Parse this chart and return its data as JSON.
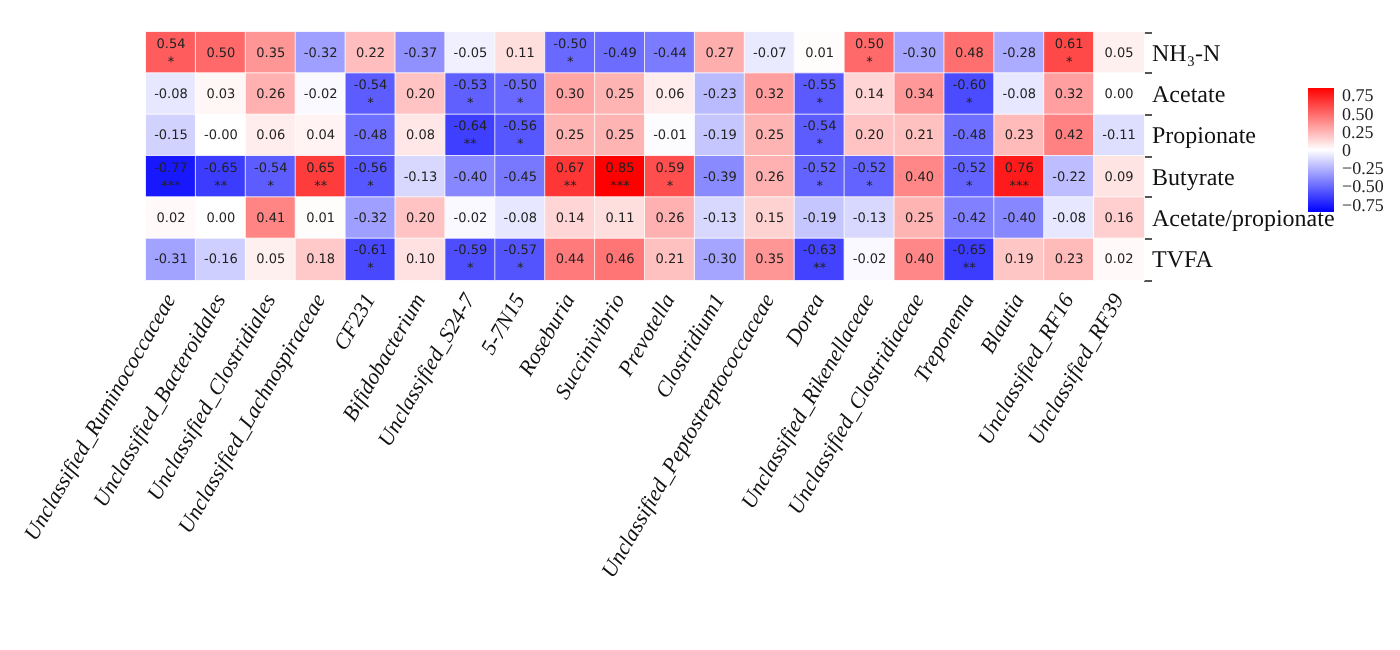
{
  "chart_data": {
    "type": "heatmap",
    "categories": [
      "Unclassified_Ruminococcaceae",
      "Unclassified_Bacteroidales",
      "Unclassified_Clostridiales",
      "Unclassified_Lachnospiraceae",
      "CF231",
      "Bifidobacterium",
      "Unclassified_S24-7",
      "5-7N15",
      "Roseburia",
      "Succinivibrio",
      "Prevotella",
      "Clostridium1",
      "Unclassified_Peptostreptococcaceae",
      "Dorea",
      "Unclassified_Rikenellaceae",
      "Unclassified_Clostridiaceae",
      "Treponema",
      "Blautia",
      "Unclassified_RF16",
      "Unclassified_RF39"
    ],
    "y_categories": [
      "NH₃-N",
      "Acetate",
      "Propionate",
      "Butyrate",
      "Acetate/propionate",
      "TVFA"
    ],
    "cells": [
      [
        0.54,
        0.5,
        0.35,
        -0.32,
        0.22,
        -0.37,
        -0.05,
        0.11,
        -0.5,
        -0.49,
        -0.44,
        0.27,
        -0.07,
        0.01,
        0.5,
        -0.3,
        0.48,
        -0.28,
        0.61,
        0.05
      ],
      [
        -0.08,
        0.03,
        0.26,
        -0.02,
        -0.54,
        0.2,
        -0.53,
        -0.5,
        0.3,
        0.25,
        0.06,
        -0.23,
        0.32,
        -0.55,
        0.14,
        0.34,
        -0.6,
        -0.08,
        0.32,
        0.0
      ],
      [
        -0.15,
        0,
        0.06,
        0.04,
        -0.48,
        0.08,
        -0.64,
        -0.56,
        0.25,
        0.25,
        -0.01,
        -0.19,
        0.25,
        -0.54,
        0.2,
        0.21,
        -0.48,
        0.23,
        0.42,
        -0.11
      ],
      [
        -0.77,
        -0.65,
        -0.54,
        0.65,
        -0.56,
        -0.13,
        -0.4,
        -0.45,
        0.67,
        0.85,
        0.59,
        -0.39,
        0.26,
        -0.52,
        -0.52,
        0.4,
        -0.52,
        0.76,
        -0.22,
        0.09
      ],
      [
        0.02,
        0.0,
        0.41,
        0.01,
        -0.32,
        0.2,
        -0.02,
        -0.08,
        0.14,
        0.11,
        0.26,
        -0.13,
        0.15,
        -0.19,
        -0.13,
        0.25,
        -0.42,
        -0.4,
        -0.08,
        0.16
      ],
      [
        -0.31,
        -0.16,
        0.05,
        0.18,
        -0.61,
        0.1,
        -0.59,
        -0.57,
        0.44,
        0.46,
        0.21,
        -0.3,
        0.35,
        -0.63,
        -0.02,
        0.4,
        -0.65,
        0.19,
        0.23,
        0.02
      ]
    ],
    "cell_labels": [
      [
        "0.54\n*",
        "0.50",
        "0.35",
        "-0.32",
        "0.22",
        "-0.37",
        "-0.05",
        "0.11",
        "-0.50\n*",
        "-0.49",
        "-0.44",
        "0.27",
        "-0.07",
        "0.01",
        "0.50\n*",
        "-0.30",
        "0.48",
        "-0.28",
        "0.61\n*",
        "0.05"
      ],
      [
        "-0.08",
        "0.03",
        "0.26",
        "-0.02",
        "-0.54\n*",
        "0.20",
        "-0.53\n*",
        "-0.50\n*",
        "0.30",
        "0.25",
        "0.06",
        "-0.23",
        "0.32",
        "-0.55\n*",
        "0.14",
        "0.34",
        "-0.60\n*",
        "-0.08",
        "0.32",
        "0.00"
      ],
      [
        "-0.15",
        "-0.00",
        "0.06",
        "0.04",
        "-0.48",
        "0.08",
        "-0.64\n**",
        "-0.56\n*",
        "0.25",
        "0.25",
        "-0.01",
        "-0.19",
        "0.25",
        "-0.54\n*",
        "0.20",
        "0.21",
        "-0.48",
        "0.23",
        "0.42",
        "-0.11"
      ],
      [
        "-0.77\n***",
        "-0.65\n**",
        "-0.54\n*",
        "0.65\n**",
        "-0.56\n*",
        "-0.13",
        "-0.40",
        "-0.45",
        "0.67\n**",
        "0.85\n***",
        "0.59\n*",
        "-0.39",
        "0.26",
        "-0.52\n*",
        "-0.52\n*",
        "0.40",
        "-0.52\n*",
        "0.76\n***",
        "-0.22",
        "0.09"
      ],
      [
        "0.02",
        "0.00",
        "0.41",
        "0.01",
        "-0.32",
        "0.20",
        "-0.02",
        "-0.08",
        "0.14",
        "0.11",
        "0.26",
        "-0.13",
        "0.15",
        "-0.19",
        "-0.13",
        "0.25",
        "-0.42",
        "-0.40",
        "-0.08",
        "0.16"
      ],
      [
        "-0.31",
        "-0.16",
        "0.05",
        "0.18",
        "-0.61\n*",
        "0.10",
        "-0.59\n*",
        "-0.57\n*",
        "0.44",
        "0.46",
        "0.21",
        "-0.30",
        "0.35",
        "-0.63\n**",
        "-0.02",
        "0.40",
        "-0.65\n**",
        "0.19",
        "0.23",
        "0.02"
      ]
    ],
    "clim": [
      -0.85,
      0.85
    ],
    "cticks": [
      {
        "value": 0.75,
        "label": "0.75"
      },
      {
        "value": 0.5,
        "label": "0.50"
      },
      {
        "value": 0.25,
        "label": "0.25"
      },
      0,
      {
        "value": -0.25,
        "label": "−0.25"
      },
      {
        "value": -0.5,
        "label": "−0.50"
      },
      {
        "value": -0.75,
        "label": "−0.75"
      }
    ]
  }
}
